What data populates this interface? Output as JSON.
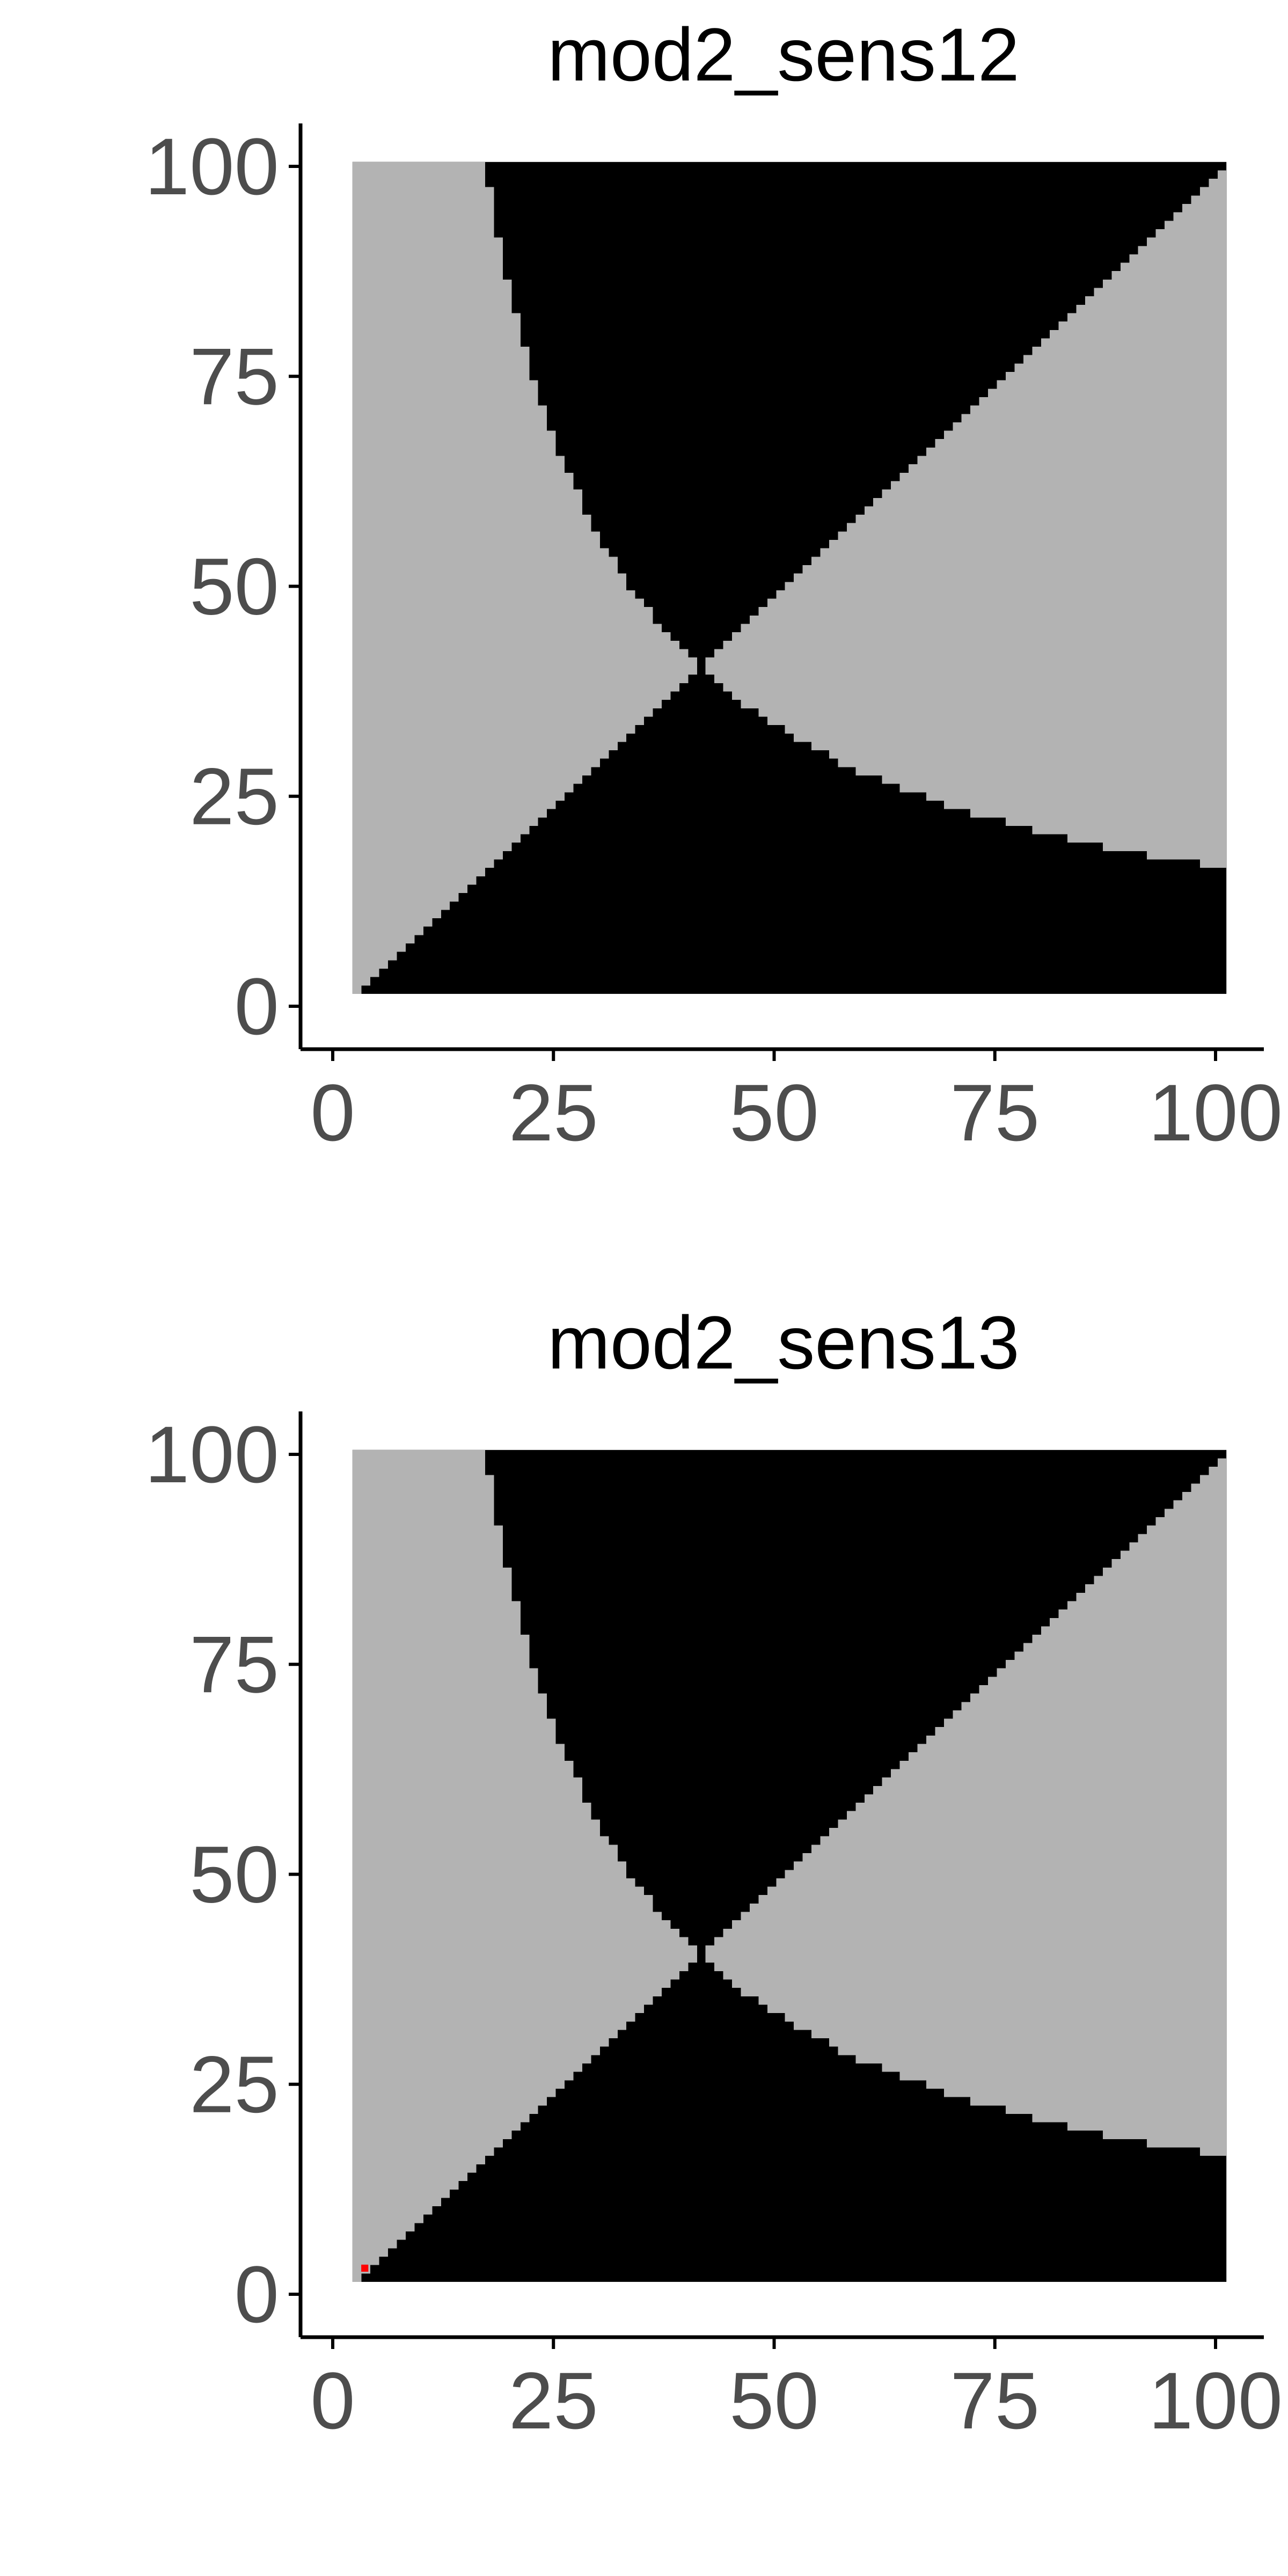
{
  "colors": {
    "background": "#ffffff",
    "region_a": "#b3b3b3",
    "region_b": "#000000",
    "highlight": "#ff0000",
    "axis": "#000000",
    "tick_text": "#4d4d4d"
  },
  "chart_data": [
    {
      "type": "heatmap",
      "title": "mod2_sens12",
      "xlabel": "",
      "ylabel": "",
      "xlim": [
        -3,
        106
      ],
      "ylim": [
        -3,
        106
      ],
      "x_ticks": [
        0,
        25,
        50,
        75,
        100
      ],
      "y_ticks": [
        0,
        25,
        50,
        75,
        100
      ],
      "x_tick_labels": [
        "0",
        "25",
        "50",
        "75",
        "100"
      ],
      "y_tick_labels": [
        "0",
        "25",
        "50",
        "75",
        "100"
      ],
      "grid": false,
      "legend": "none",
      "grid_range": [
        2,
        100
      ],
      "categories": [
        "region_a",
        "region_b",
        "highlight"
      ],
      "region_rule": "Cells at (x, y), 2 <= x,y <= 100: region_a (gray) when (x - 40)(y - 40) < 0 and (x - 40)(y - 40) > -1300 (excluding narrow black wedges along the diagonal); region_b (black) otherwise. Gray/black boundary follows x*y approx 1600 hyperbola and the y = x diagonal.",
      "boundary_points": [
        {
          "x": 17,
          "y": 100
        },
        {
          "x": 20,
          "y": 80
        },
        {
          "x": 25,
          "y": 64
        },
        {
          "x": 30,
          "y": 53
        },
        {
          "x": 35,
          "y": 45
        },
        {
          "x": 40,
          "y": 40
        },
        {
          "x": 45,
          "y": 35
        },
        {
          "x": 53,
          "y": 30
        },
        {
          "x": 64,
          "y": 25
        },
        {
          "x": 80,
          "y": 20
        },
        {
          "x": 100,
          "y": 17
        }
      ],
      "highlight_cells": []
    },
    {
      "type": "heatmap",
      "title": "mod2_sens13",
      "xlabel": "",
      "ylabel": "",
      "xlim": [
        -3,
        106
      ],
      "ylim": [
        -3,
        106
      ],
      "x_ticks": [
        0,
        25,
        50,
        75,
        100
      ],
      "y_ticks": [
        0,
        25,
        50,
        75,
        100
      ],
      "x_tick_labels": [
        "0",
        "25",
        "50",
        "75",
        "100"
      ],
      "y_tick_labels": [
        "0",
        "25",
        "50",
        "75",
        "100"
      ],
      "grid": false,
      "legend": "none",
      "grid_range": [
        2,
        100
      ],
      "categories": [
        "region_a",
        "region_b",
        "highlight"
      ],
      "region_rule": "Same pattern as mod2_sens12 with one red cell near the origin.",
      "boundary_points": [
        {
          "x": 17,
          "y": 100
        },
        {
          "x": 20,
          "y": 80
        },
        {
          "x": 25,
          "y": 64
        },
        {
          "x": 30,
          "y": 53
        },
        {
          "x": 35,
          "y": 45
        },
        {
          "x": 40,
          "y": 40
        },
        {
          "x": 45,
          "y": 35
        },
        {
          "x": 53,
          "y": 30
        },
        {
          "x": 64,
          "y": 25
        },
        {
          "x": 80,
          "y": 20
        },
        {
          "x": 100,
          "y": 17
        }
      ],
      "highlight_cells": [
        {
          "x": 3,
          "y": 3
        }
      ]
    }
  ]
}
